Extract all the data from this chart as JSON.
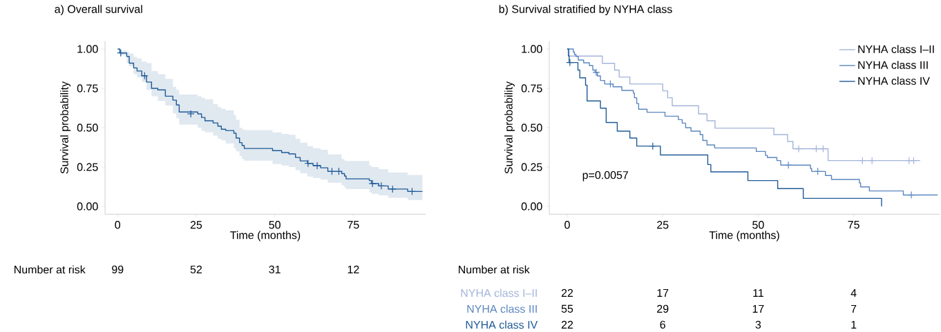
{
  "chart_data": [
    {
      "type": "step",
      "title": "a) Overall survival",
      "xlabel": "Time (months)",
      "ylabel": "Survival probability",
      "xlim": [
        -4,
        98
      ],
      "ylim": [
        -0.05,
        1.05
      ],
      "xticks": [
        0,
        25,
        50,
        75
      ],
      "yticks": [
        {
          "value": 0,
          "label": "0.00"
        },
        {
          "value": 0.25,
          "label": "0.25"
        },
        {
          "value": 0.5,
          "label": "0.50"
        },
        {
          "value": 0.75,
          "label": "0.75"
        },
        {
          "value": 1,
          "label": "1.00"
        }
      ],
      "series": [
        {
          "color": "#1f5a96",
          "x": [
            0,
            0.7,
            2.9,
            3.7,
            5.1,
            6.2,
            7.7,
            9.2,
            10.8,
            12.8,
            15.2,
            17.6,
            18.7,
            19.6,
            25.5,
            26.7,
            27.8,
            30.4,
            31.9,
            33,
            34.4,
            37,
            37.7,
            38.8,
            39.6,
            40.3,
            49.3,
            52.2,
            54.5,
            56.6,
            58.1,
            60.4,
            62.2,
            64.6,
            66.9,
            71.3,
            72.2,
            72.7,
            80.1,
            80.8,
            83.1,
            86.1,
            92.3,
            97
          ],
          "values": [
            1,
            0.975,
            0.953,
            0.91,
            0.88,
            0.86,
            0.83,
            0.79,
            0.75,
            0.74,
            0.7,
            0.675,
            0.645,
            0.6,
            0.588,
            0.565,
            0.544,
            0.53,
            0.51,
            0.49,
            0.482,
            0.465,
            0.434,
            0.405,
            0.387,
            0.368,
            0.354,
            0.342,
            0.333,
            0.311,
            0.289,
            0.273,
            0.259,
            0.245,
            0.222,
            0.208,
            0.193,
            0.175,
            0.164,
            0.145,
            0.13,
            0.11,
            0.095,
            0.095
          ],
          "lower": [
            1,
            0.96,
            0.91,
            0.89,
            0.84,
            0.82,
            0.79,
            0.74,
            0.7,
            0.67,
            0.64,
            0.59,
            0.56,
            0.52,
            0.5,
            0.48,
            0.47,
            0.45,
            0.43,
            0.42,
            0.4,
            0.37,
            0.35,
            0.32,
            0.3,
            0.29,
            0.27,
            0.26,
            0.25,
            0.23,
            0.21,
            0.19,
            0.18,
            0.17,
            0.15,
            0.135,
            0.12,
            0.11,
            0.09,
            0.08,
            0.07,
            0.055,
            0.04,
            0.04
          ],
          "upper": [
            1,
            0.99,
            0.98,
            0.97,
            0.95,
            0.94,
            0.92,
            0.91,
            0.86,
            0.84,
            0.81,
            0.76,
            0.74,
            0.71,
            0.7,
            0.69,
            0.68,
            0.65,
            0.63,
            0.62,
            0.61,
            0.58,
            0.55,
            0.5,
            0.49,
            0.485,
            0.47,
            0.46,
            0.455,
            0.43,
            0.405,
            0.383,
            0.37,
            0.36,
            0.33,
            0.3,
            0.29,
            0.288,
            0.26,
            0.25,
            0.237,
            0.215,
            0.2,
            0.2
          ]
        },
        {
          "type": "scatter",
          "marker": "cross",
          "color": "#1f5a96",
          "x": [
            1.0,
            8.6,
            23.3,
            60.6,
            63.5,
            68.2,
            70.4,
            81.1,
            83.9,
            87.5,
            93.7
          ],
          "values": [
            0.975,
            0.83,
            0.588,
            0.273,
            0.259,
            0.222,
            0.222,
            0.145,
            0.13,
            0.11,
            0.095
          ]
        }
      ],
      "annotations": [
        "Number at risk",
        "99",
        "52",
        "31",
        "12"
      ]
    },
    {
      "type": "step",
      "title": "b) Survival stratified by NYHA class",
      "xlabel": "Time (months)",
      "ylabel": "Survival probability",
      "xlim": [
        -4.7,
        97.5
      ],
      "ylim": [
        -0.05,
        1.05
      ],
      "xticks": [
        0,
        25,
        50,
        75
      ],
      "yticks": [
        {
          "value": 0,
          "label": "0.00"
        },
        {
          "value": 0.25,
          "label": "0.25"
        },
        {
          "value": 0.5,
          "label": "0.50"
        },
        {
          "value": 0.75,
          "label": "0.75"
        },
        {
          "value": 1,
          "label": "1.00"
        }
      ],
      "legend": "top right",
      "series": [
        {
          "name": "NYHA class I–II",
          "color": "#a3b5d9",
          "x": [
            0,
            0.5,
            9.2,
            12.4,
            13.6,
            16.4,
            25.0,
            26.3,
            27.5,
            34.4,
            36.6,
            38.7,
            54.1,
            57.7,
            59.1,
            68.3,
            92.4
          ],
          "values": [
            1,
            0.955,
            0.909,
            0.866,
            0.822,
            0.778,
            0.734,
            0.69,
            0.639,
            0.588,
            0.544,
            0.497,
            0.456,
            0.412,
            0.366,
            0.291,
            0.291
          ]
        },
        {
          "name": "NYHA class III",
          "color": "#5b86bf",
          "x": [
            0,
            1.6,
            1.9,
            2.3,
            2.9,
            4.3,
            5.8,
            6.7,
            7.3,
            7.9,
            8.7,
            9.8,
            12.0,
            14.3,
            17.3,
            17.6,
            18.2,
            18.7,
            20.9,
            25.6,
            29.1,
            30.1,
            31.0,
            32.4,
            34.8,
            35.5,
            36.6,
            38.6,
            49.5,
            51.9,
            52.4,
            54.9,
            55.9,
            63.7,
            64.0,
            67.6,
            69.2,
            76.5,
            76.8,
            79.1,
            88.0,
            97
          ],
          "values": [
            1,
            0.98,
            0.965,
            0.953,
            0.93,
            0.912,
            0.895,
            0.866,
            0.851,
            0.829,
            0.8,
            0.778,
            0.76,
            0.737,
            0.72,
            0.69,
            0.654,
            0.617,
            0.598,
            0.573,
            0.551,
            0.529,
            0.5,
            0.478,
            0.456,
            0.419,
            0.39,
            0.371,
            0.349,
            0.324,
            0.31,
            0.291,
            0.262,
            0.24,
            0.222,
            0.196,
            0.171,
            0.149,
            0.124,
            0.098,
            0.072,
            0.072
          ]
        },
        {
          "name": "NYHA class IV",
          "color": "#1f5a96",
          "x": [
            0,
            0.3,
            0.5,
            2.8,
            3.3,
            4.8,
            5.2,
            8.7,
            10.2,
            13.1,
            16.4,
            18.2,
            24.4,
            36.8,
            37.6,
            47.3,
            55.1,
            61.8,
            82.3
          ],
          "values": [
            1,
            0.956,
            0.914,
            0.866,
            0.817,
            0.77,
            0.67,
            0.624,
            0.533,
            0.478,
            0.434,
            0.383,
            0.327,
            0.266,
            0.219,
            0.164,
            0.113,
            0.051,
            0
          ]
        },
        {
          "type": "scatter",
          "marker": "cross",
          "color": "#a3b5d9",
          "x": [
            60.6,
            65.2,
            67.0,
            77.3,
            79.8,
            89.5,
            90.7
          ],
          "values": [
            0.366,
            0.366,
            0.366,
            0.291,
            0.291,
            0.291,
            0.291
          ]
        },
        {
          "type": "scatter",
          "marker": "cross",
          "color": "#5b86bf",
          "x": [
            7.6,
            11.3,
            57.9,
            65.6,
            90.1
          ],
          "values": [
            0.851,
            0.778,
            0.262,
            0.222,
            0.072
          ]
        },
        {
          "type": "scatter",
          "marker": "cross",
          "color": "#1f5a96",
          "x": [
            0.7,
            22.4
          ],
          "values": [
            0.914,
            0.383
          ]
        }
      ],
      "annotations": [
        "Number at risk",
        "p=0.0057",
        "22",
        "17",
        "11",
        "4",
        "55",
        "29",
        "17",
        "7",
        "22",
        "6",
        "3",
        "1"
      ]
    }
  ]
}
